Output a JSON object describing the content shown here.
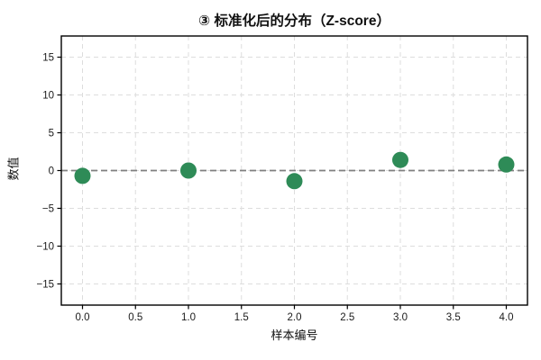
{
  "chart_data": {
    "type": "scatter",
    "title": "③ 标准化后的分布（Z-score）",
    "xlabel": "样本编号",
    "ylabel": "数值",
    "x": [
      0,
      1,
      2,
      3,
      4
    ],
    "y": [
      -0.7,
      0.0,
      -1.4,
      1.4,
      0.8
    ],
    "xlim": [
      -0.2,
      4.2
    ],
    "ylim": [
      -17.8,
      17.8
    ],
    "x_ticks": [
      0,
      0.5,
      1,
      1.5,
      2,
      2.5,
      3,
      3.5,
      4
    ],
    "x_tick_labels": [
      "0.0",
      "0.5",
      "1.0",
      "1.5",
      "2.0",
      "2.5",
      "3.0",
      "3.5",
      "4.0"
    ],
    "y_ticks": [
      -15,
      -10,
      -5,
      0,
      5,
      10,
      15
    ],
    "y_tick_labels": [
      "−15",
      "−10",
      "−5",
      "0",
      "5",
      "10",
      "15"
    ],
    "grid": true,
    "legend": "none",
    "reference_line": {
      "y": 0,
      "style": "dashed",
      "color": "#7f7f7f"
    },
    "marker": {
      "shape": "circle",
      "color": "#2e8b57",
      "radius_px": 9
    }
  },
  "colors": {
    "background": "#ffffff",
    "spine": "#000000",
    "gridline": "#dddddd",
    "tick_text": "#1a1a1a",
    "marker": "#2e8b57",
    "reference_line": "#7f7f7f"
  }
}
